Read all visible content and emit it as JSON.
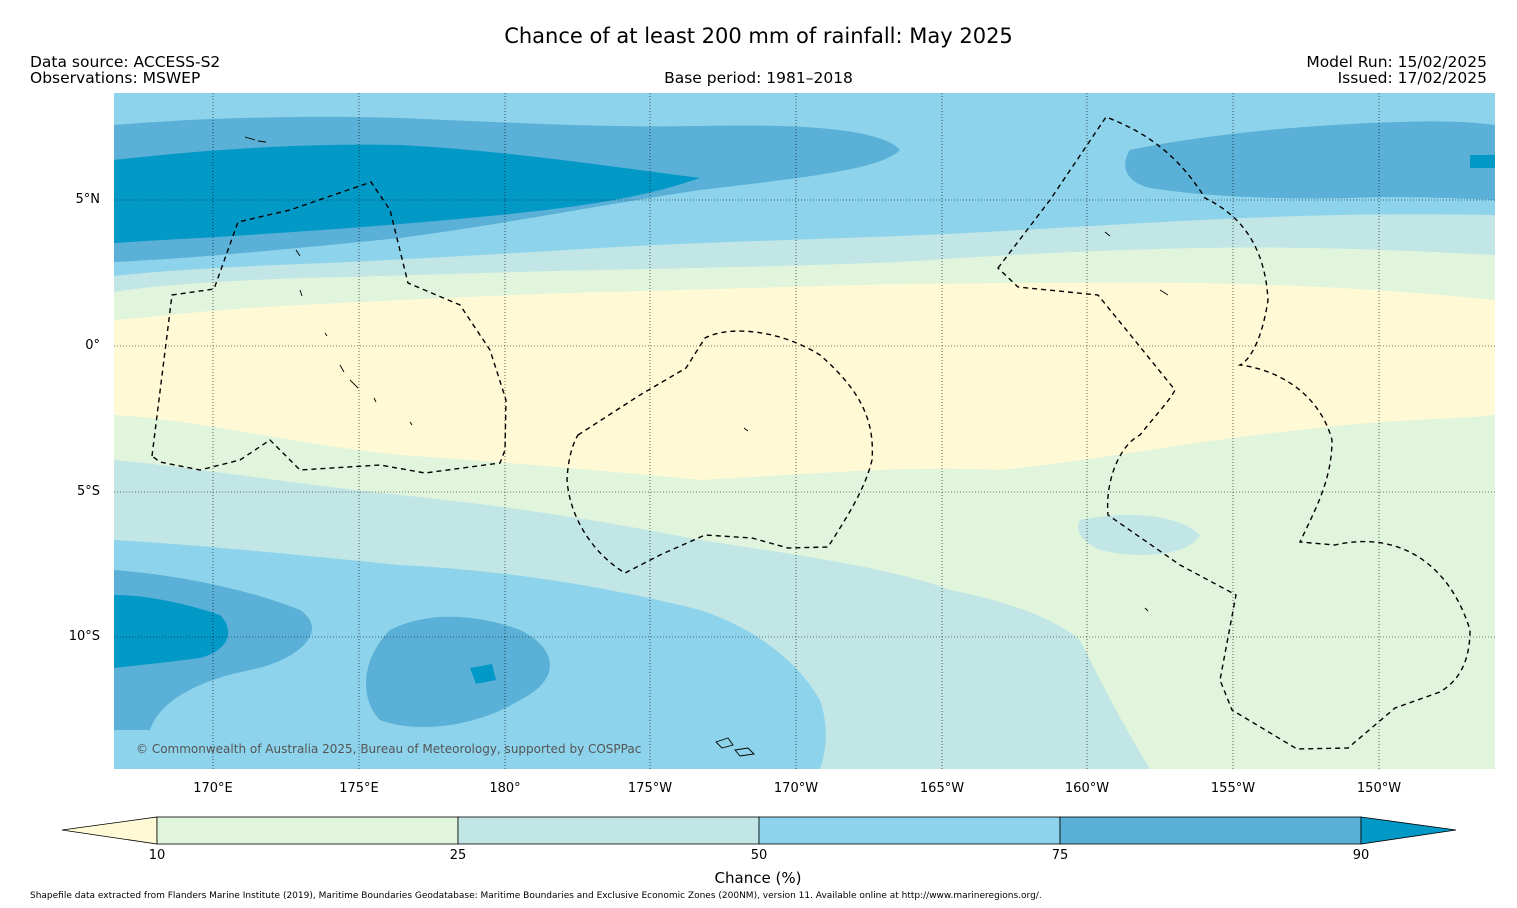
{
  "title": "Chance of at least 200 mm of rainfall: May 2025",
  "header": {
    "data_source": "Data source: ACCESS-S2",
    "observations": "Observations: MSWEP",
    "base_period": "Base period: 1981–2018",
    "model_run": "Model Run: 15/02/2025",
    "issued": "Issued: 17/02/2025"
  },
  "map": {
    "lat_labels": [
      "5°N",
      "0°",
      "5°S",
      "10°S"
    ],
    "lon_labels": [
      "170°E",
      "175°E",
      "180°",
      "175°W",
      "170°W",
      "165°W",
      "160°W",
      "155°W",
      "150°W"
    ],
    "lat_values": [
      5,
      0,
      -5,
      -10
    ],
    "lon_values_east": [
      170,
      175,
      180,
      185,
      190,
      195,
      200,
      205,
      210
    ],
    "lat_range": [
      -14.3,
      8.9
    ],
    "lon_range": [
      166.6,
      214.2
    ],
    "copyright": "© Commonwealth of Australia 2025, Bureau of Meteorology, supported by COSPPac"
  },
  "colorbar": {
    "title": "Chance (%)",
    "tick_labels": [
      "10",
      "25",
      "50",
      "75",
      "90"
    ],
    "tick_values": [
      10,
      25,
      50,
      75,
      90
    ],
    "colors": [
      "#fffad5",
      "#e0f5dc",
      "#c1e6e5",
      "#8dd3eb",
      "#5ab0d6",
      "#0399c7"
    ]
  },
  "footer": "Shapefile data extracted from Flanders Marine Institute (2019), Maritime Boundaries Geodatabase: Maritime Boundaries and Exclusive Economic Zones (200NM), version 11. Available online at http://www.marineregions.org/."
}
